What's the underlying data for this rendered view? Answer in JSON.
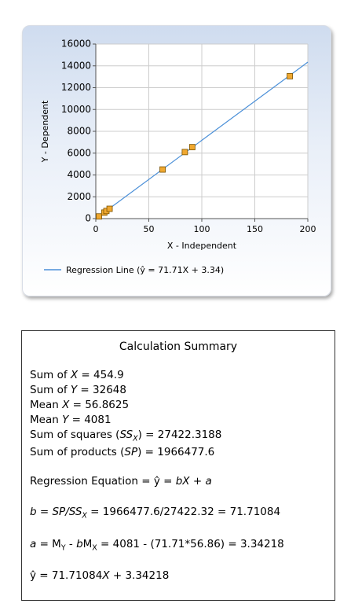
{
  "chart_data": {
    "type": "scatter",
    "ylabel": "Y - Dependent",
    "xlabel": "X - Independent",
    "x": [
      3,
      8,
      10,
      13,
      63,
      84,
      91,
      183
    ],
    "values": [
      200,
      550,
      700,
      900,
      4500,
      6100,
      6550,
      13050
    ],
    "point_color": "#f0a830",
    "line": {
      "name": "Regression Line (ŷ = 71.71X + 3.34)",
      "color": "#4a8fd8",
      "x": [
        0,
        200
      ],
      "values": [
        3,
        14345
      ]
    },
    "xlim": [
      0,
      200
    ],
    "xticks": [
      0,
      50,
      100,
      150,
      200
    ],
    "ylim": [
      0,
      16000
    ],
    "yticks": [
      0,
      2000,
      4000,
      6000,
      8000,
      10000,
      12000,
      14000,
      16000
    ],
    "grid": true
  },
  "summary": {
    "title": "Calculation Summary",
    "lines": [
      [
        "Sum of ",
        {
          "t": "X",
          "s": "i"
        },
        " = 454.9"
      ],
      [
        "Sum of ",
        {
          "t": "Y",
          "s": "i"
        },
        " = 32648"
      ],
      [
        "Mean ",
        {
          "t": "X",
          "s": "i"
        },
        " = 56.8625"
      ],
      [
        "Mean ",
        {
          "t": "Y",
          "s": "i"
        },
        " = 4081"
      ],
      [
        "Sum of squares (",
        {
          "t": "SS",
          "s": "i"
        },
        {
          "t": "X",
          "s": "isub"
        },
        ") = 27422.3188"
      ],
      [
        "Sum of products (",
        {
          "t": "SP",
          "s": "i"
        },
        ") = 1966477.6"
      ],
      [
        "Regression Equation = ŷ = ",
        {
          "t": "bX",
          "s": "i"
        },
        " + ",
        {
          "t": "a",
          "s": "i"
        }
      ],
      [
        {
          "t": "b",
          "s": "i"
        },
        " = ",
        {
          "t": "SP/SS",
          "s": "i"
        },
        {
          "t": "X",
          "s": "isub"
        },
        " = 1966477.6/27422.32 = 71.71084"
      ],
      [
        {
          "t": "a",
          "s": "i"
        },
        " = M",
        {
          "t": "Y",
          "s": "sub"
        },
        " - ",
        {
          "t": "b",
          "s": "i"
        },
        "M",
        {
          "t": "X",
          "s": "sub"
        },
        " = 4081 - (71.71*56.86) = 3.34218"
      ],
      [
        "ŷ = 71.71084",
        {
          "t": "X",
          "s": "i"
        },
        " + 3.34218"
      ]
    ]
  }
}
